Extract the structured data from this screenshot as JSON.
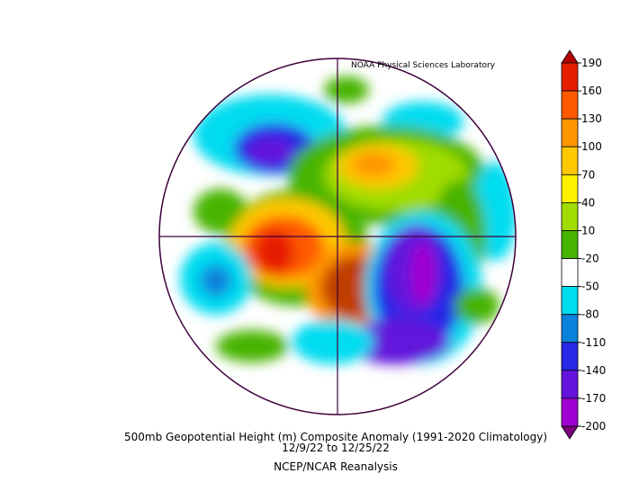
{
  "header": {
    "lab": "NOAA Physical Sciences Laboratory"
  },
  "caption": {
    "title": "500mb Geopotential Height (m) Composite Anomaly (1991-2020 Climatology)",
    "dates": "12/9/22  to 12/25/22",
    "source": "NCEP/NCAR Reanalysis"
  },
  "colorbar": {
    "ticks": [
      190,
      160,
      130,
      100,
      70,
      40,
      10,
      -20,
      -50,
      -80,
      -110,
      -140,
      -170,
      -200
    ],
    "colors": [
      "#b40000",
      "#e61e00",
      "#ff5a00",
      "#ff9600",
      "#ffc800",
      "#fff000",
      "#a0dc00",
      "#46b400",
      "#ffffff",
      "#00dcf0",
      "#0a82dc",
      "#2828e6",
      "#6414dc",
      "#a000d2",
      "#780078"
    ]
  }
}
